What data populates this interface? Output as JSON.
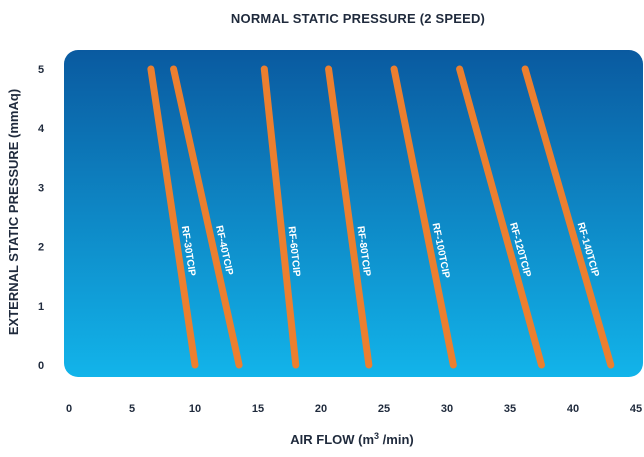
{
  "chart_data": {
    "type": "line",
    "title": "NORMAL STATIC PRESSURE (2 SPEED)",
    "xlabel": "AIR FLOW",
    "xlabel_unit_prefix": "(m",
    "xlabel_unit_sup": "3",
    "xlabel_unit_suffix": " /min)",
    "ylabel": "EXTERNAL STATIC PRESSURE (mmAq)",
    "xlim": [
      0,
      45
    ],
    "ylim": [
      0,
      5
    ],
    "x_ticks": [
      "0",
      "5",
      "10",
      "15",
      "20",
      "25",
      "30",
      "35",
      "40",
      "45"
    ],
    "y_ticks": [
      "0",
      "1",
      "2",
      "3",
      "4",
      "5"
    ],
    "grid": false,
    "series": [
      {
        "name": "RF-30TCIP",
        "points": [
          [
            6.5,
            5
          ],
          [
            10,
            0
          ]
        ]
      },
      {
        "name": "RF-40TCIP",
        "points": [
          [
            8.3,
            5
          ],
          [
            13.5,
            0
          ]
        ]
      },
      {
        "name": "RF-60TCIP",
        "points": [
          [
            15.5,
            5
          ],
          [
            18,
            0
          ]
        ]
      },
      {
        "name": "RF-80TCIP",
        "points": [
          [
            20.6,
            5
          ],
          [
            23.8,
            0
          ]
        ]
      },
      {
        "name": "RF-100TCIP",
        "points": [
          [
            25.8,
            5
          ],
          [
            30.5,
            0
          ]
        ]
      },
      {
        "name": "RF-120TCIP",
        "points": [
          [
            31,
            5
          ],
          [
            37.5,
            0
          ]
        ]
      },
      {
        "name": "RF-140TCIP",
        "points": [
          [
            36.2,
            5
          ],
          [
            43,
            0
          ]
        ]
      }
    ],
    "colors": {
      "line": "#ec7f2f",
      "panel_top": "#0a5aa0",
      "panel_bottom": "#12b4ea",
      "text_dark": "#1f2a3c",
      "series_label": "#ffffff"
    }
  }
}
